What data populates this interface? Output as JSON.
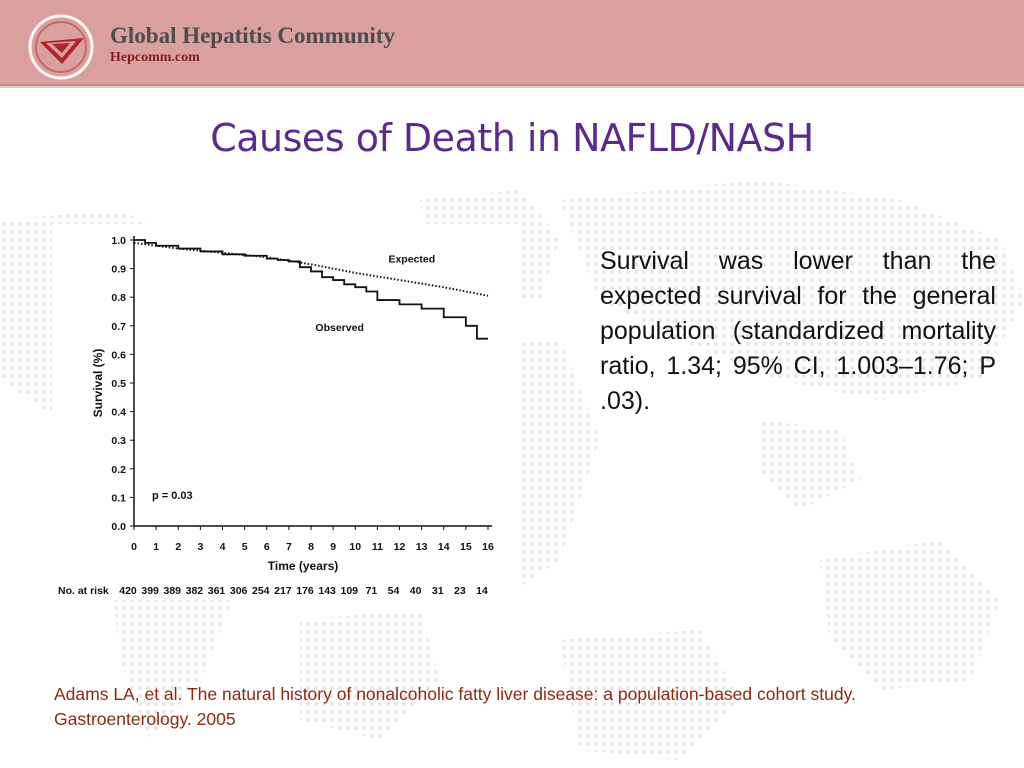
{
  "header": {
    "brand_name": "Global Hepatitis Community",
    "brand_url": "Hepcomm.com",
    "logo_icon": "hepcomm-logo-icon",
    "bar_color": "#d9a09f"
  },
  "slide": {
    "title": "Causes of Death in NAFLD/NASH",
    "title_color": "#5b2a8c",
    "description": "Survival was lower than the expected survival for the general population (standardized mortality ratio, 1.34; 95% CI, 1.003–1.76; P .03).",
    "citation": "Adams LA, et al. The natural history of nonalcoholic fatty liver disease: a population-based cohort study. Gastroenterology. 2005"
  },
  "chart_data": {
    "type": "line",
    "xlabel": "Time (years)",
    "ylabel": "Survival (%)",
    "xlim": [
      0,
      16
    ],
    "ylim": [
      0.0,
      1.0
    ],
    "x_ticks": [
      "0",
      "1",
      "2",
      "3",
      "4",
      "5",
      "6",
      "7",
      "8",
      "9",
      "10",
      "11",
      "12",
      "13",
      "14",
      "15",
      "16"
    ],
    "y_ticks": [
      "0.0",
      "0.1",
      "0.2",
      "0.3",
      "0.4",
      "0.5",
      "0.6",
      "0.7",
      "0.8",
      "0.9",
      "1.0"
    ],
    "annotation": "p = 0.03",
    "series": [
      {
        "name": "Expected",
        "style": "dotted",
        "x": [
          0,
          2,
          4,
          6,
          8,
          10,
          12,
          14,
          16
        ],
        "y": [
          0.99,
          0.97,
          0.955,
          0.94,
          0.915,
          0.885,
          0.86,
          0.835,
          0.805
        ]
      },
      {
        "name": "Observed",
        "style": "step",
        "x": [
          0,
          0.5,
          1,
          2,
          3,
          4,
          5,
          6,
          6.5,
          7,
          7.5,
          8,
          8.5,
          9,
          9.5,
          10,
          10.5,
          11,
          12,
          13,
          14,
          15,
          15.5,
          16
        ],
        "y": [
          1.0,
          0.99,
          0.98,
          0.97,
          0.96,
          0.95,
          0.945,
          0.935,
          0.93,
          0.925,
          0.905,
          0.89,
          0.87,
          0.86,
          0.845,
          0.835,
          0.82,
          0.79,
          0.775,
          0.76,
          0.73,
          0.7,
          0.655,
          0.655
        ]
      }
    ],
    "at_risk": {
      "label": "No. at risk",
      "values": [
        "420",
        "399",
        "389",
        "382",
        "361",
        "306",
        "254",
        "217",
        "176",
        "143",
        "109",
        "71",
        "54",
        "40",
        "31",
        "23",
        "14"
      ]
    }
  }
}
